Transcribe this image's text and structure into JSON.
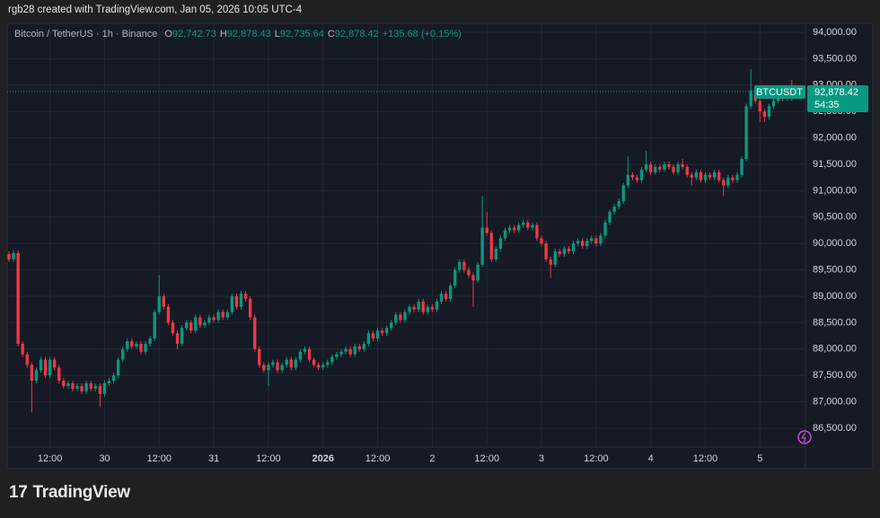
{
  "header": {
    "credit": "rgb28 created with TradingView.com, Jan 05, 2026 10:05 UTC-4"
  },
  "footer": {
    "brand": "TradingView"
  },
  "chart_data": {
    "type": "candlestick",
    "title": "Bitcoin / TetherUS · 1h · Binance",
    "ohlc_legend": [
      {
        "label": "O",
        "value": "92,742.73"
      },
      {
        "label": "H",
        "value": "92,878.43"
      },
      {
        "label": "L",
        "value": "92,735.64"
      },
      {
        "label": "C",
        "value": "92,878.42"
      }
    ],
    "change": "+135.68 (+0.15%)",
    "price_tag": {
      "symbol": "BTCUSDT",
      "price": {
        "value": 92878.42,
        "label": "92,878.42"
      },
      "countdown": "54:35"
    },
    "up_color": "#089981",
    "down_color": "#f23645",
    "grid": true,
    "candles": {
      "open": [
        89800,
        89700,
        89820,
        88100,
        87900,
        87700,
        87400,
        87600,
        87800,
        87500,
        87800,
        87650,
        87400,
        87300,
        87350,
        87250,
        87300,
        87200,
        87350,
        87250,
        87300,
        87150,
        87350,
        87400,
        87500,
        87800,
        88000,
        88150,
        88050,
        88100,
        87950,
        88100,
        88200,
        88700,
        89000,
        88800,
        88500,
        88300,
        88100,
        88400,
        88500,
        88350,
        88600,
        88450,
        88500,
        88600,
        88550,
        88700,
        88600,
        88700,
        89000,
        88800,
        89050,
        88950,
        88600,
        88000,
        87700,
        87600,
        87700,
        87750,
        87600,
        87700,
        87800,
        87650,
        87800,
        87950,
        88000,
        87800,
        87700,
        87650,
        87700,
        87750,
        87850,
        87900,
        87950,
        88000,
        87900,
        88050,
        88000,
        88100,
        88300,
        88200,
        88350,
        88300,
        88400,
        88500,
        88650,
        88550,
        88700,
        88800,
        88750,
        88900,
        88700,
        88800,
        88750,
        88900,
        89050,
        88950,
        89200,
        89500,
        89650,
        89500,
        89400,
        89300,
        89600,
        90300,
        90200,
        89700,
        89900,
        90100,
        90250,
        90300,
        90250,
        90350,
        90400,
        90300,
        90350,
        90100,
        90000,
        89700,
        89600,
        89850,
        89800,
        89900,
        89850,
        90000,
        90050,
        89950,
        90050,
        90100,
        90000,
        90150,
        90400,
        90600,
        90700,
        90800,
        91100,
        91300,
        91250,
        91200,
        91400,
        91500,
        91350,
        91450,
        91400,
        91500,
        91450,
        91350,
        91500,
        91450,
        91300,
        91250,
        91350,
        91200,
        91300,
        91250,
        91350,
        91200,
        91100,
        91250,
        91200,
        91300,
        91600,
        92600,
        92900,
        92700,
        92500,
        92400,
        92600,
        92700,
        92800,
        92750,
        92900,
        92742.73
      ],
      "high": [
        89850,
        89870,
        89870,
        88150,
        87950,
        87750,
        87650,
        87850,
        87850,
        87850,
        87850,
        87700,
        87450,
        87400,
        87400,
        87350,
        87350,
        87400,
        87400,
        87350,
        87350,
        87400,
        87450,
        87550,
        87850,
        88050,
        88200,
        88200,
        88150,
        88150,
        88150,
        88250,
        88750,
        89400,
        89050,
        88850,
        88550,
        88350,
        88450,
        88550,
        88550,
        88650,
        88650,
        88550,
        88650,
        88650,
        88750,
        88750,
        88750,
        89050,
        89050,
        89100,
        89100,
        89000,
        88650,
        88050,
        87750,
        87750,
        87800,
        87800,
        87750,
        87850,
        87850,
        87850,
        88000,
        88050,
        88050,
        87850,
        87750,
        87750,
        87800,
        87900,
        87950,
        88000,
        88050,
        88050,
        88100,
        88100,
        88150,
        88350,
        88350,
        88400,
        88400,
        88450,
        88550,
        88700,
        88700,
        88750,
        88850,
        88850,
        88950,
        88950,
        88850,
        88850,
        88950,
        89100,
        89100,
        89250,
        89550,
        89700,
        89700,
        89550,
        89450,
        89650,
        90900,
        90600,
        90250,
        89950,
        90150,
        90300,
        90350,
        90350,
        90400,
        90450,
        90450,
        90400,
        90400,
        90150,
        90050,
        89750,
        89900,
        89900,
        89950,
        89950,
        90050,
        90100,
        90100,
        90100,
        90150,
        90150,
        90200,
        90450,
        90650,
        90750,
        90850,
        91150,
        91650,
        91350,
        91300,
        91450,
        91750,
        91550,
        91500,
        91500,
        91550,
        91550,
        91500,
        91550,
        91600,
        91500,
        91350,
        91400,
        91400,
        91350,
        91350,
        91400,
        91400,
        91250,
        91300,
        91300,
        91350,
        91650,
        92650,
        93300,
        92950,
        92750,
        92550,
        92650,
        92750,
        92850,
        92850,
        92950,
        93100,
        92878.43
      ],
      "low": [
        89650,
        89650,
        88050,
        87850,
        87650,
        86800,
        87350,
        87550,
        87450,
        87450,
        87600,
        87350,
        87250,
        87250,
        87200,
        87200,
        87150,
        87150,
        87200,
        87200,
        86900,
        87100,
        87300,
        87350,
        87450,
        87750,
        87950,
        88000,
        88000,
        87900,
        87900,
        88050,
        88150,
        88650,
        88750,
        88450,
        88250,
        88000,
        88050,
        88350,
        88300,
        88300,
        88400,
        88400,
        88450,
        88500,
        88500,
        88550,
        88550,
        88650,
        88750,
        88750,
        88900,
        88550,
        87950,
        87650,
        87550,
        87300,
        87650,
        87550,
        87550,
        87650,
        87600,
        87600,
        87750,
        87900,
        87750,
        87650,
        87600,
        87600,
        87650,
        87700,
        87800,
        87850,
        87900,
        87850,
        87850,
        87950,
        87950,
        88050,
        88150,
        88150,
        88250,
        88250,
        88350,
        88450,
        88500,
        88500,
        88650,
        88700,
        88700,
        88650,
        88650,
        88700,
        88700,
        88850,
        88900,
        88900,
        89150,
        89450,
        89450,
        89350,
        88800,
        89250,
        89550,
        90150,
        89650,
        89650,
        89850,
        90050,
        90200,
        90200,
        90200,
        90300,
        90250,
        90250,
        90050,
        89950,
        89650,
        89350,
        89550,
        89750,
        89750,
        89800,
        89800,
        89950,
        89900,
        89900,
        90000,
        89950,
        89950,
        90100,
        90350,
        90550,
        90650,
        90750,
        91050,
        91200,
        91150,
        91150,
        91350,
        91300,
        91300,
        91350,
        91350,
        91400,
        91300,
        91300,
        91400,
        91250,
        91100,
        91200,
        91150,
        91150,
        91200,
        91200,
        91150,
        90900,
        91050,
        91150,
        91150,
        91250,
        91550,
        92550,
        92650,
        92300,
        92300,
        92350,
        92550,
        92650,
        92700,
        92700,
        92700,
        92735.64
      ],
      "close": [
        89700,
        89820,
        88100,
        87900,
        87700,
        87400,
        87600,
        87800,
        87500,
        87800,
        87650,
        87400,
        87300,
        87350,
        87250,
        87300,
        87200,
        87350,
        87250,
        87300,
        87150,
        87350,
        87400,
        87500,
        87800,
        88000,
        88150,
        88050,
        88100,
        87950,
        88100,
        88200,
        88700,
        89000,
        88800,
        88500,
        88300,
        88100,
        88400,
        88500,
        88350,
        88600,
        88450,
        88500,
        88600,
        88550,
        88700,
        88600,
        88700,
        89000,
        88800,
        89050,
        88950,
        88600,
        88000,
        87700,
        87600,
        87700,
        87750,
        87600,
        87700,
        87800,
        87650,
        87800,
        87950,
        88000,
        87800,
        87700,
        87650,
        87700,
        87750,
        87850,
        87900,
        87950,
        88000,
        87900,
        88050,
        88000,
        88100,
        88300,
        88200,
        88350,
        88300,
        88400,
        88500,
        88650,
        88550,
        88700,
        88800,
        88750,
        88900,
        88700,
        88800,
        88750,
        88900,
        89050,
        88950,
        89200,
        89500,
        89650,
        89500,
        89400,
        89300,
        89600,
        90300,
        90200,
        89700,
        89900,
        90100,
        90250,
        90300,
        90250,
        90350,
        90400,
        90300,
        90350,
        90100,
        90000,
        89700,
        89600,
        89850,
        89800,
        89900,
        89850,
        90000,
        90050,
        89950,
        90050,
        90100,
        90000,
        90150,
        90400,
        90600,
        90700,
        90800,
        91100,
        91300,
        91250,
        91200,
        91400,
        91500,
        91350,
        91450,
        91400,
        91500,
        91450,
        91350,
        91500,
        91450,
        91300,
        91250,
        91350,
        91200,
        91300,
        91250,
        91350,
        91200,
        91100,
        91250,
        91200,
        91300,
        91600,
        92600,
        92900,
        92700,
        92500,
        92400,
        92600,
        92700,
        92800,
        92750,
        92900,
        92742.73,
        92878.42
      ]
    },
    "xlim": [
      0,
      175
    ],
    "xticks": [
      {
        "value": 9,
        "label": "12:00"
      },
      {
        "value": 21,
        "label": "30"
      },
      {
        "value": 33,
        "label": "12:00"
      },
      {
        "value": 45,
        "label": "31"
      },
      {
        "value": 57,
        "label": "12:00"
      },
      {
        "value": 69,
        "label": "2026"
      },
      {
        "value": 81,
        "label": "12:00"
      },
      {
        "value": 93,
        "label": "2"
      },
      {
        "value": 105,
        "label": "12:00"
      },
      {
        "value": 117,
        "label": "3"
      },
      {
        "value": 129,
        "label": "12:00"
      },
      {
        "value": 141,
        "label": "4"
      },
      {
        "value": 153,
        "label": "12:00"
      },
      {
        "value": 165,
        "label": "5"
      }
    ],
    "ylim": [
      85735,
      94170
    ],
    "yticks": [
      {
        "value": 86500,
        "label": "86,500.00"
      },
      {
        "value": 87000,
        "label": "87,000.00"
      },
      {
        "value": 87500,
        "label": "87,500.00"
      },
      {
        "value": 88000,
        "label": "88,000.00"
      },
      {
        "value": 88500,
        "label": "88,500.00"
      },
      {
        "value": 89000,
        "label": "89,000.00"
      },
      {
        "value": 89500,
        "label": "89,500.00"
      },
      {
        "value": 90000,
        "label": "90,000.00"
      },
      {
        "value": 90500,
        "label": "90,500.00"
      },
      {
        "value": 91000,
        "label": "91,000.00"
      },
      {
        "value": 91500,
        "label": "91,500.00"
      },
      {
        "value": 92000,
        "label": "92,000.00"
      },
      {
        "value": 92500,
        "label": "92,500.00"
      },
      {
        "value": 93000,
        "label": "93,000.00"
      },
      {
        "value": 93500,
        "label": "93,500.00"
      },
      {
        "value": 94000,
        "label": "94,000.00"
      }
    ]
  }
}
